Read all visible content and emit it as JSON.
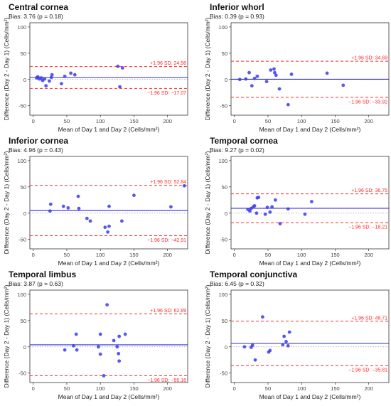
{
  "shared": {
    "xlabel": "Mean of Day 1 and Day 2 (Cells/mm²)",
    "ylabel": "Difference (Day 2 - Day 1) (Cells/mm²)",
    "colors": {
      "points": "#3a3af0",
      "bias_line": "#2d2dd6",
      "loa_line": "#ff2a2a",
      "zero_line": "#9a9a9a",
      "annotation": "#ff2a2a"
    }
  },
  "chart_data": [
    {
      "type": "scatter",
      "title": "Central cornea",
      "subtitle": "Bias: 3.76 (p = 0.18)",
      "xlim": [
        -5,
        230
      ],
      "ylim": [
        -68,
        108
      ],
      "xticks": [
        0,
        50,
        100,
        150,
        200
      ],
      "yticks": [
        -50,
        0,
        50,
        100
      ],
      "bias": 3.76,
      "upper_loa": 24.58,
      "lower_loa": -17.07,
      "upper_label": "+1.96 SD: 24.58",
      "lower_label": "−1.96 SD: −17.07",
      "points": [
        [
          5,
          3
        ],
        [
          7,
          5
        ],
        [
          9,
          1
        ],
        [
          12,
          3
        ],
        [
          14,
          -2
        ],
        [
          17,
          1
        ],
        [
          19,
          -12
        ],
        [
          24,
          -3
        ],
        [
          27,
          4
        ],
        [
          28,
          9
        ],
        [
          42,
          -8
        ],
        [
          47,
          6
        ],
        [
          56,
          12
        ],
        [
          62,
          9
        ],
        [
          126,
          25
        ],
        [
          129,
          -14
        ],
        [
          133,
          22
        ]
      ]
    },
    {
      "type": "scatter",
      "title": "Inferior whorl",
      "subtitle": "Bias: 0.39 (p = 0.93)",
      "xlim": [
        -5,
        230
      ],
      "ylim": [
        -68,
        108
      ],
      "xticks": [
        0,
        50,
        100,
        150,
        200
      ],
      "yticks": [
        -50,
        0,
        50,
        100
      ],
      "bias": 0.39,
      "upper_loa": 34.69,
      "lower_loa": -33.92,
      "upper_label": "+1.96 SD: 34.69",
      "lower_label": "−1.96 SD: −33.92",
      "points": [
        [
          8,
          0
        ],
        [
          17,
          1
        ],
        [
          22,
          13
        ],
        [
          26,
          -12
        ],
        [
          30,
          2
        ],
        [
          34,
          6
        ],
        [
          48,
          -4
        ],
        [
          54,
          18
        ],
        [
          59,
          20
        ],
        [
          60,
          13
        ],
        [
          62,
          8
        ],
        [
          67,
          -18
        ],
        [
          80,
          -48
        ],
        [
          85,
          10
        ],
        [
          138,
          12
        ],
        [
          162,
          -11
        ]
      ]
    },
    {
      "type": "scatter",
      "title": "Inferior cornea",
      "subtitle": "Bias: 4.96 (p = 0.43)",
      "xlim": [
        -5,
        230
      ],
      "ylim": [
        -68,
        108
      ],
      "xticks": [
        0,
        50,
        100,
        150,
        200
      ],
      "yticks": [
        -50,
        0,
        50,
        100
      ],
      "bias": 4.96,
      "upper_loa": 52.84,
      "lower_loa": -42.91,
      "upper_label": "+1.96 SD: 52.84",
      "lower_label": "−1.96 SD: −42.91",
      "points": [
        [
          25,
          4
        ],
        [
          26,
          17
        ],
        [
          45,
          13
        ],
        [
          52,
          10
        ],
        [
          67,
          32
        ],
        [
          68,
          9
        ],
        [
          80,
          -10
        ],
        [
          85,
          -15
        ],
        [
          107,
          -27
        ],
        [
          111,
          -36
        ],
        [
          113,
          13
        ],
        [
          113,
          -25
        ],
        [
          132,
          -15
        ],
        [
          150,
          34
        ],
        [
          205,
          12
        ],
        [
          225,
          52
        ]
      ]
    },
    {
      "type": "scatter",
      "title": "Temporal cornea",
      "subtitle": "Bias: 9.27 (p = 0.02)",
      "xlim": [
        -5,
        230
      ],
      "ylim": [
        -68,
        108
      ],
      "xticks": [
        0,
        50,
        100,
        150,
        200
      ],
      "yticks": [
        -50,
        0,
        50,
        100
      ],
      "bias": 9.27,
      "upper_loa": 36.75,
      "lower_loa": -18.21,
      "upper_label": "+1.96 SD: 36.75",
      "lower_label": "−1.96 SD: −18.21",
      "points": [
        [
          20,
          7
        ],
        [
          23,
          4
        ],
        [
          25,
          9
        ],
        [
          28,
          12
        ],
        [
          30,
          14
        ],
        [
          33,
          0
        ],
        [
          34,
          29
        ],
        [
          36,
          30
        ],
        [
          46,
          -2
        ],
        [
          49,
          11
        ],
        [
          53,
          2
        ],
        [
          56,
          12
        ],
        [
          61,
          25
        ],
        [
          68,
          -20
        ],
        [
          80,
          8
        ],
        [
          105,
          -2
        ],
        [
          115,
          22
        ]
      ]
    },
    {
      "type": "scatter",
      "title": "Temporal limbus",
      "subtitle": "Bias: 3.87 (p = 0.63)",
      "xlim": [
        -5,
        230
      ],
      "ylim": [
        -68,
        108
      ],
      "xticks": [
        0,
        50,
        100,
        150,
        200
      ],
      "yticks": [
        -50,
        0,
        50,
        100
      ],
      "bias": 3.87,
      "upper_loa": 62.89,
      "lower_loa": -55.16,
      "upper_label": "+1.96 SD: 62.89",
      "lower_label": "−1.96 SD: −55.16",
      "points": [
        [
          47,
          -6
        ],
        [
          60,
          2
        ],
        [
          64,
          24
        ],
        [
          65,
          -6
        ],
        [
          97,
          0
        ],
        [
          100,
          24
        ],
        [
          100,
          -14
        ],
        [
          105,
          -55
        ],
        [
          110,
          80
        ],
        [
          120,
          12
        ],
        [
          125,
          0
        ],
        [
          127,
          -13
        ],
        [
          128,
          20
        ],
        [
          128,
          -27
        ],
        [
          137,
          24
        ]
      ]
    },
    {
      "type": "scatter",
      "title": "Temporal conjunctiva",
      "subtitle": "Bias: 6.45 (p = 0.32)",
      "xlim": [
        -5,
        230
      ],
      "ylim": [
        -68,
        108
      ],
      "xticks": [
        0,
        50,
        100,
        150,
        200
      ],
      "yticks": [
        -50,
        0,
        50,
        100
      ],
      "bias": 6.45,
      "upper_loa": 48.71,
      "lower_loa": -35.81,
      "upper_label": "+1.96 SD: 48.71",
      "lower_label": "−1.96 SD: −35.81",
      "points": [
        [
          15,
          0
        ],
        [
          25,
          -1
        ],
        [
          27,
          3
        ],
        [
          31,
          -25
        ],
        [
          42,
          57
        ],
        [
          51,
          -10
        ],
        [
          53,
          -7
        ],
        [
          72,
          4
        ],
        [
          74,
          20
        ],
        [
          77,
          10
        ],
        [
          80,
          2
        ],
        [
          82,
          28
        ]
      ]
    }
  ]
}
